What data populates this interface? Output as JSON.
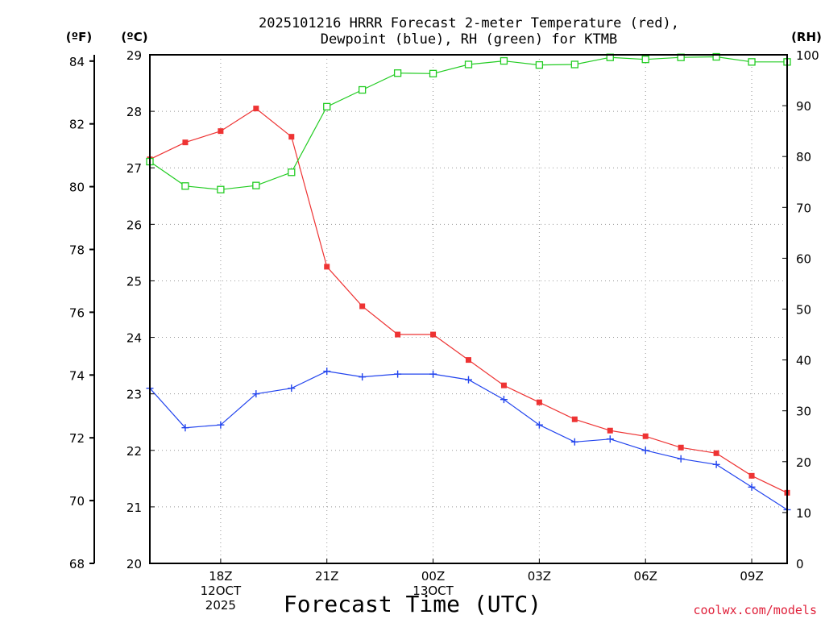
{
  "title_line1": "2025101216 HRRR Forecast 2-meter Temperature (red),",
  "title_line2": "Dewpoint (blue), RH (green) for KTMB",
  "unit_f": "(ºF)",
  "unit_c": "(ºC)",
  "unit_rh": "(RH)",
  "xlabel": "Forecast Time (UTC)",
  "credit": "coolwx.com/models",
  "chart_data": {
    "type": "line",
    "title": "2025101216 HRRR Forecast 2-meter Temperature (red), Dewpoint (blue), RH (green) for KTMB",
    "xlabel": "Forecast Time (UTC)",
    "x_hours_from_16z": [
      0,
      1,
      2,
      3,
      4,
      5,
      6,
      7,
      8,
      9,
      10,
      11,
      12,
      13,
      14,
      15,
      16,
      17,
      18
    ],
    "xlim": [
      0,
      18
    ],
    "x_ticks": [
      {
        "x": 2,
        "lines": [
          "18Z",
          "12OCT",
          "2025"
        ]
      },
      {
        "x": 5,
        "lines": [
          "21Z"
        ]
      },
      {
        "x": 8,
        "lines": [
          "00Z",
          "13OCT"
        ]
      },
      {
        "x": 11,
        "lines": [
          "03Z"
        ]
      },
      {
        "x": 14,
        "lines": [
          "06Z"
        ]
      },
      {
        "x": 17,
        "lines": [
          "09Z"
        ]
      }
    ],
    "y_left_celsius": {
      "label": "(ºC)",
      "range": [
        20,
        29
      ],
      "ticks": [
        "20",
        "21",
        "22",
        "23",
        "24",
        "25",
        "26",
        "27",
        "28",
        "29"
      ]
    },
    "y_left_fahrenheit": {
      "label": "(ºF)",
      "range": [
        68,
        84.2
      ],
      "ticks": [
        "68",
        "70",
        "72",
        "74",
        "76",
        "78",
        "80",
        "82",
        "84"
      ]
    },
    "y_right_rh": {
      "label": "(RH)",
      "range": [
        0,
        100
      ],
      "ticks": [
        "0",
        "10",
        "20",
        "30",
        "40",
        "50",
        "60",
        "70",
        "80",
        "90",
        "100"
      ]
    },
    "grid": true,
    "series": [
      {
        "name": "Temperature",
        "unit": "C",
        "axis": "celsius",
        "color": "#ee3333",
        "marker": "filled-square",
        "values": [
          27.15,
          27.45,
          27.65,
          28.05,
          27.55,
          25.25,
          24.55,
          24.05,
          24.05,
          23.6,
          23.15,
          22.85,
          22.55,
          22.35,
          22.25,
          22.05,
          21.95,
          21.55,
          21.25
        ]
      },
      {
        "name": "Dewpoint",
        "unit": "C",
        "axis": "celsius",
        "color": "#2244ee",
        "marker": "plus",
        "values": [
          23.1,
          22.4,
          22.45,
          23.0,
          23.1,
          23.4,
          23.3,
          23.35,
          23.35,
          23.25,
          22.9,
          22.45,
          22.15,
          22.2,
          22.0,
          21.85,
          21.75,
          21.35,
          20.95
        ]
      },
      {
        "name": "RH",
        "unit": "%",
        "axis": "rh",
        "color": "#22cc22",
        "marker": "open-square",
        "values": [
          79,
          74.2,
          73.5,
          74.3,
          76.9,
          89.8,
          93.1,
          96.4,
          96.3,
          98.1,
          98.8,
          98.0,
          98.1,
          99.5,
          99.1,
          99.5,
          99.6,
          98.6,
          98.6
        ]
      }
    ]
  }
}
